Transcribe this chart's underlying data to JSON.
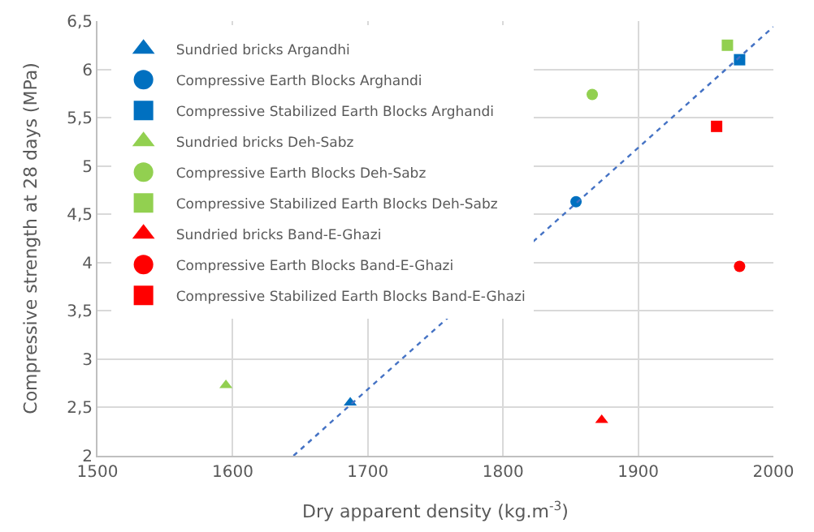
{
  "chart_data": {
    "type": "scatter",
    "xlabel": "Dry apparent density (kg.m$^{-3}$)",
    "ylabel": "Compressive strength at 28 days (MPa)",
    "xlim": [
      1500,
      2000
    ],
    "xticks": [
      1500,
      1600,
      1700,
      1800,
      1900,
      2000
    ],
    "ylim": [
      2,
      6.5
    ],
    "yticks": [
      2,
      {
        "value": 2.5,
        "label": "2,5"
      },
      3,
      {
        "value": 3.5,
        "label": "3,5"
      },
      4,
      {
        "value": 4.5,
        "label": "4,5"
      },
      5,
      {
        "value": 5.5,
        "label": "5,5"
      },
      6,
      {
        "value": 6.5,
        "label": "6,5"
      }
    ],
    "grid": true,
    "legend": "top left",
    "series": [
      {
        "name": "Sundried bricks Argandhi",
        "color": "#0070c0",
        "marker": "triangle",
        "x": [
          1687
        ],
        "values": [
          2.55
        ]
      },
      {
        "name": "Compressive Earth Blocks Arghandi",
        "color": "#0070c0",
        "marker": "circle",
        "x": [
          1854
        ],
        "values": [
          4.63
        ]
      },
      {
        "name": "Compressive Stabilized Earth Blocks Arghandi",
        "color": "#0070c0",
        "marker": "square",
        "x": [
          1975
        ],
        "values": [
          6.1
        ]
      },
      {
        "name": "Sundried bricks Deh-Sabz",
        "color": "#92d050",
        "marker": "triangle",
        "x": [
          1595
        ],
        "values": [
          2.73
        ]
      },
      {
        "name": "Compressive Earth Blocks Deh-Sabz",
        "color": "#92d050",
        "marker": "circle",
        "x": [
          1866
        ],
        "values": [
          5.74
        ]
      },
      {
        "name": "Compressive Stabilized Earth Blocks Deh-Sabz",
        "color": "#92d050",
        "marker": "square",
        "x": [
          1966
        ],
        "values": [
          6.25
        ]
      },
      {
        "name": "Sundried bricks Band-E-Ghazi",
        "color": "#ff0000",
        "marker": "triangle",
        "x": [
          1873
        ],
        "values": [
          2.37
        ]
      },
      {
        "name": "Compressive Earth Blocks Band-E-Ghazi",
        "color": "#ff0000",
        "marker": "circle",
        "x": [
          1975
        ],
        "values": [
          3.96
        ]
      },
      {
        "name": "Compressive Stabilized Earth Blocks Band-E-Ghazi",
        "color": "#ff0000",
        "marker": "square",
        "x": [
          1958
        ],
        "values": [
          5.41
        ]
      },
      {
        "type": "line",
        "color": "#4472c4",
        "line_style": "dotted",
        "marker": "none",
        "x": [
          1645,
          2000
        ],
        "values": [
          2,
          6.44
        ]
      }
    ]
  }
}
